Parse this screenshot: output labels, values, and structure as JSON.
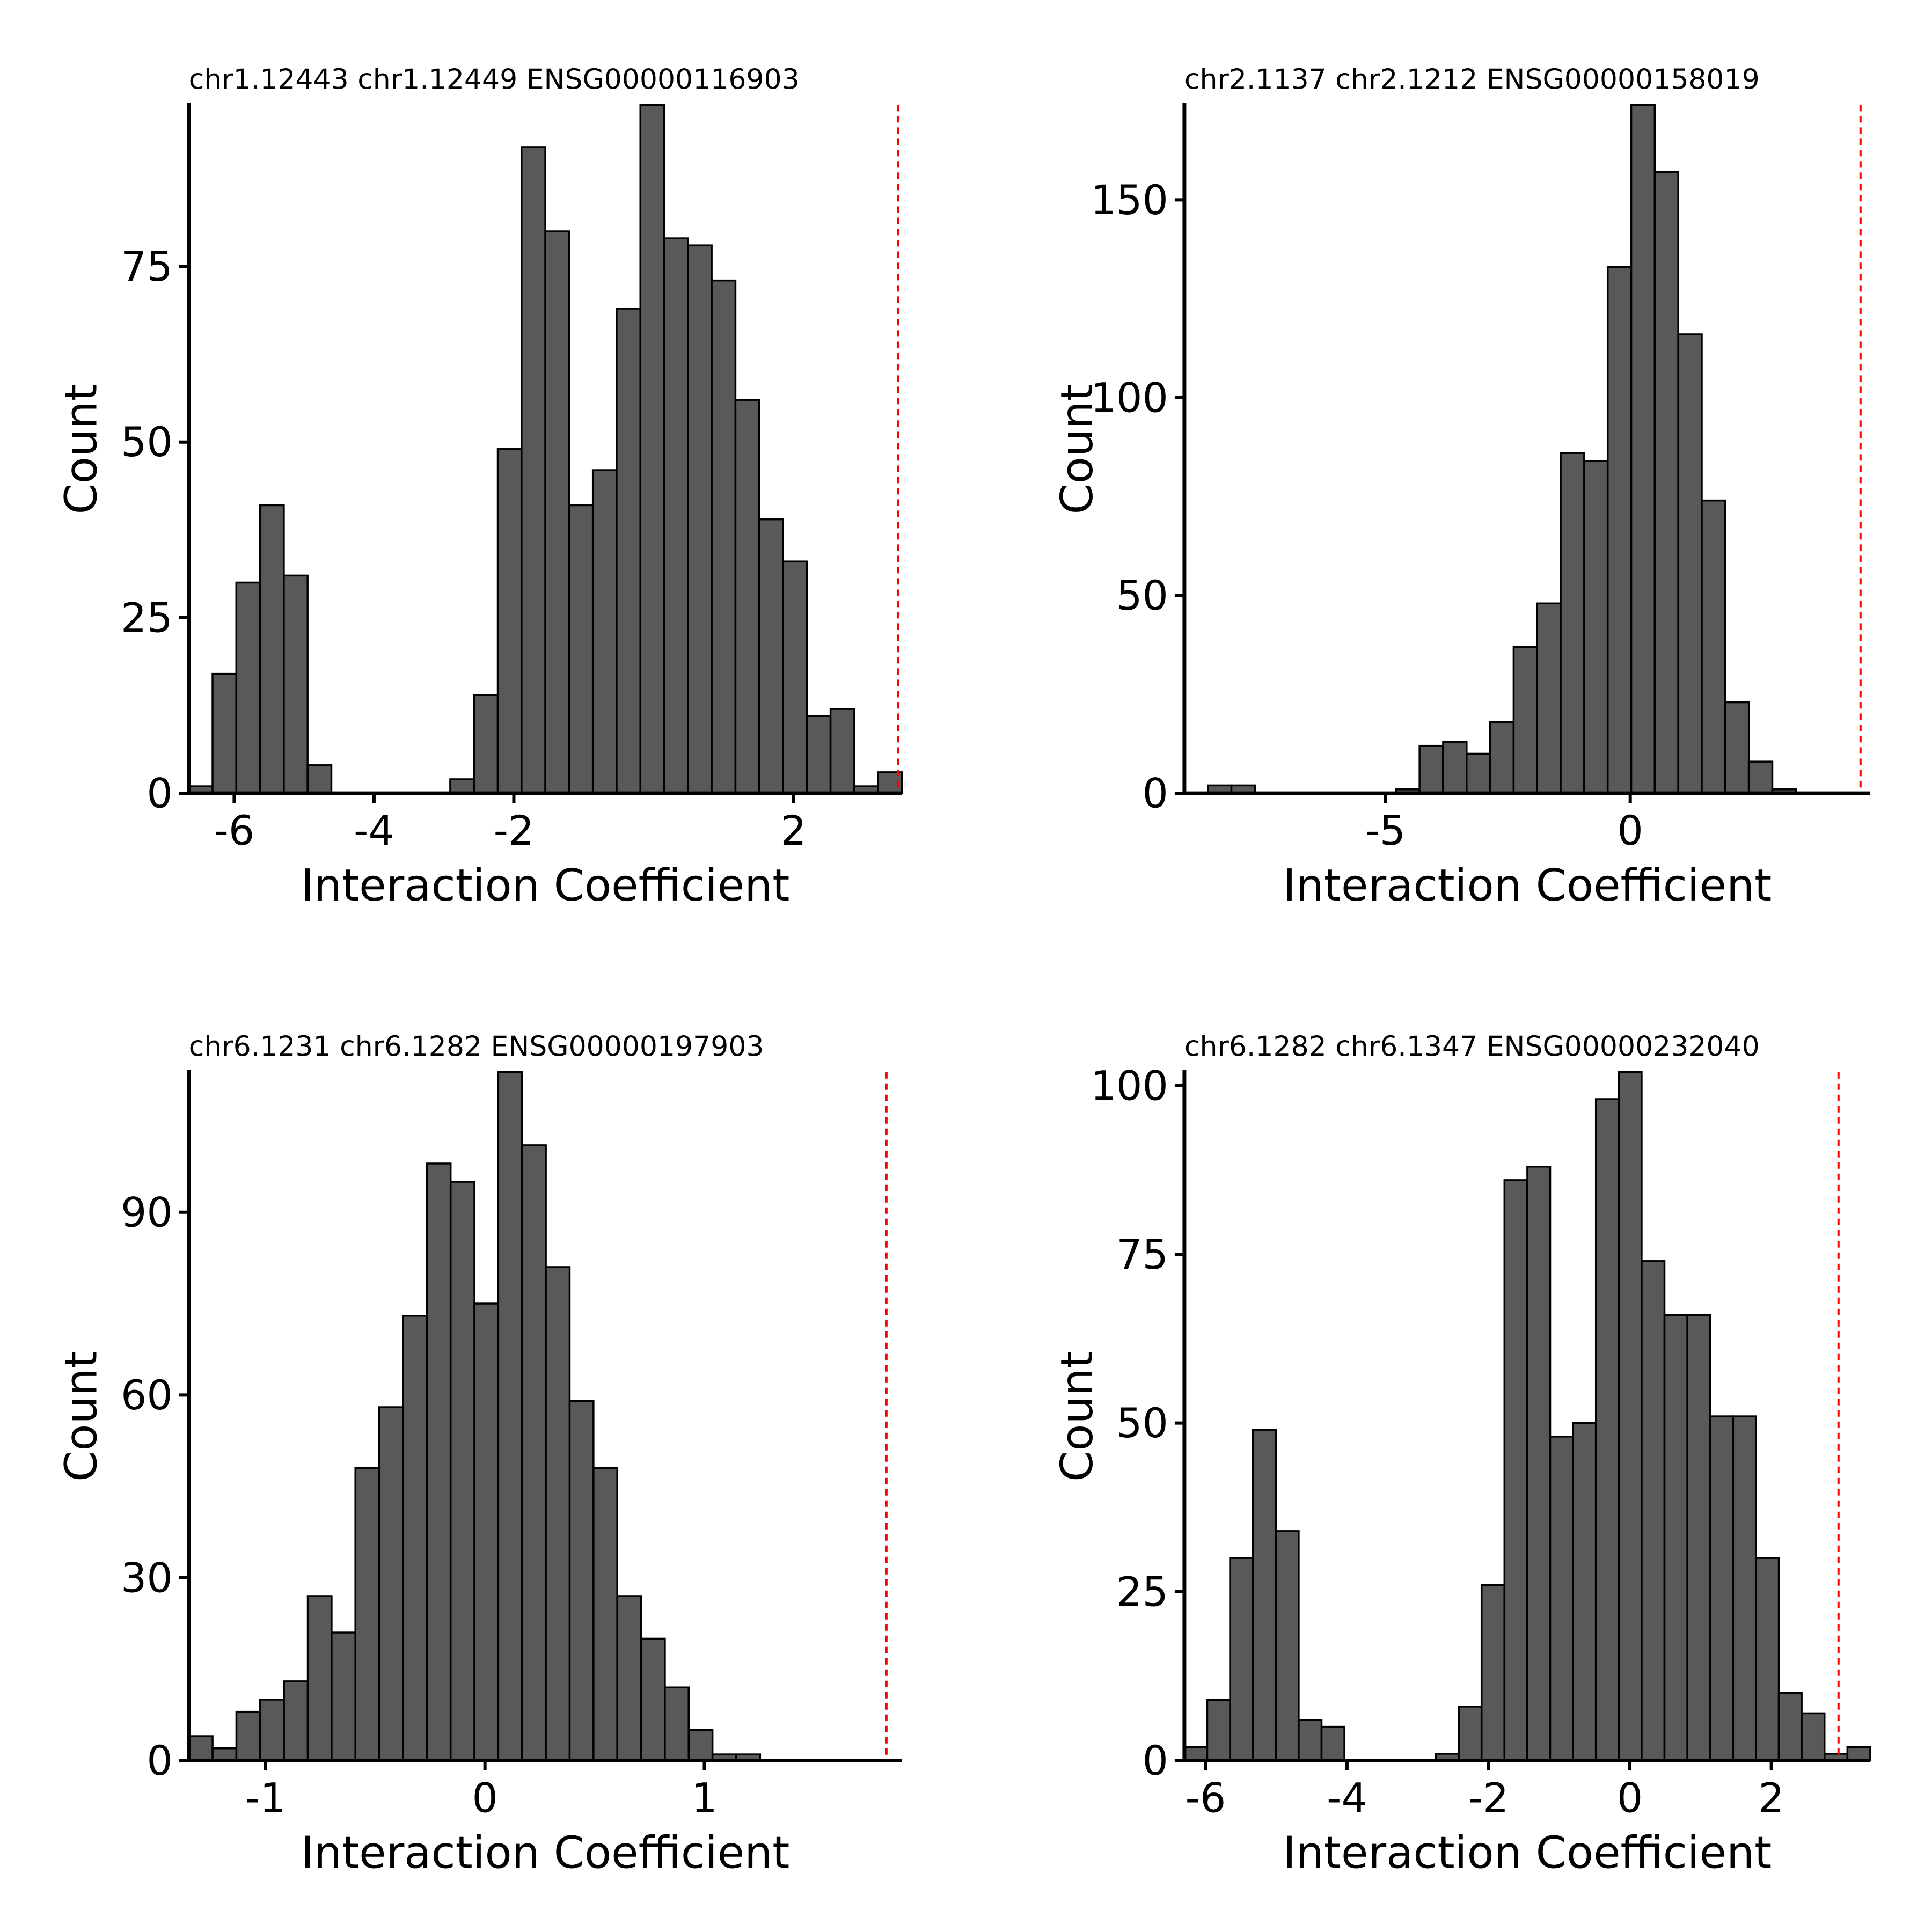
{
  "chart_data": [
    {
      "type": "bar",
      "title": "chr1.12443 chr1.12449 ENSG00000116903",
      "xlabel": "Interaction Coefficient",
      "ylabel": "Count",
      "xlim": [
        -6.65,
        3.55
      ],
      "ylim": [
        0,
        98
      ],
      "xticks": [
        -6,
        -4,
        -2,
        2
      ],
      "xtick_labels": [
        "-6",
        "-4",
        "-2",
        "2"
      ],
      "yticks": [
        0,
        25,
        50,
        75
      ],
      "ytick_labels": [
        "0",
        "25",
        "50",
        "75"
      ],
      "bin_start": -6.65,
      "bin_width": 0.34,
      "counts": [
        1,
        17,
        30,
        41,
        31,
        4,
        0,
        0,
        0,
        0,
        0,
        2,
        14,
        49,
        92,
        80,
        41,
        46,
        69,
        98,
        79,
        78,
        73,
        56,
        39,
        33,
        11,
        12,
        1,
        3
      ],
      "ref_line_x": 3.5,
      "grid": false
    },
    {
      "type": "bar",
      "title": "chr2.1137 chr2.1212 ENSG00000158019",
      "xlabel": "Interaction Coefficient",
      "ylabel": "Count",
      "xlim": [
        -9.1,
        4.9
      ],
      "ylim": [
        0,
        174
      ],
      "xticks": [
        -5,
        0
      ],
      "xtick_labels": [
        "-5",
        "0"
      ],
      "yticks": [
        0,
        50,
        100,
        150
      ],
      "ytick_labels": [
        "0",
        "50",
        "100",
        "150"
      ],
      "bin_start": -9.1,
      "bin_width": 0.48,
      "counts": [
        0,
        2,
        2,
        0,
        0,
        0,
        0,
        0,
        0,
        1,
        12,
        13,
        10,
        18,
        37,
        48,
        86,
        84,
        133,
        174,
        157,
        116,
        74,
        23,
        8,
        1,
        0,
        0,
        0
      ],
      "ref_line_x": 4.7,
      "grid": false
    },
    {
      "type": "bar",
      "title": "chr6.1231 chr6.1282 ENSG00000197903",
      "xlabel": "Interaction Coefficient",
      "ylabel": "Count",
      "xlim": [
        -1.35,
        1.9
      ],
      "ylim": [
        0,
        113
      ],
      "xticks": [
        -1,
        0,
        1
      ],
      "xtick_labels": [
        "-1",
        "0",
        "1"
      ],
      "yticks": [
        0,
        30,
        60,
        90
      ],
      "ytick_labels": [
        "0",
        "30",
        "60",
        "90"
      ],
      "bin_start": -1.35,
      "bin_width": 0.1085,
      "counts": [
        4,
        2,
        8,
        10,
        13,
        27,
        21,
        48,
        58,
        73,
        98,
        95,
        75,
        113,
        101,
        81,
        59,
        48,
        27,
        20,
        12,
        5,
        1,
        1,
        0,
        0,
        0,
        0,
        0,
        0
      ],
      "ref_line_x": 1.83,
      "grid": false
    },
    {
      "type": "bar",
      "title": "chr6.1282 chr6.1347 ENSG00000232040",
      "xlabel": "Interaction Coefficient",
      "ylabel": "Count",
      "xlim": [
        -6.3,
        3.4
      ],
      "ylim": [
        0,
        102
      ],
      "xticks": [
        -6,
        -4,
        -2,
        0,
        2
      ],
      "xtick_labels": [
        "-6",
        "-4",
        "-2",
        "0",
        "2"
      ],
      "yticks": [
        0,
        25,
        50,
        75,
        100
      ],
      "ytick_labels": [
        "0",
        "25",
        "50",
        "75",
        "100"
      ],
      "bin_start": -6.3,
      "bin_width": 0.3233,
      "counts": [
        2,
        9,
        30,
        49,
        34,
        6,
        5,
        0,
        0,
        0,
        0,
        1,
        8,
        26,
        86,
        88,
        48,
        50,
        98,
        102,
        74,
        66,
        66,
        51,
        51,
        30,
        10,
        7,
        1,
        2
      ],
      "ref_line_x": 2.95,
      "grid": false
    }
  ]
}
